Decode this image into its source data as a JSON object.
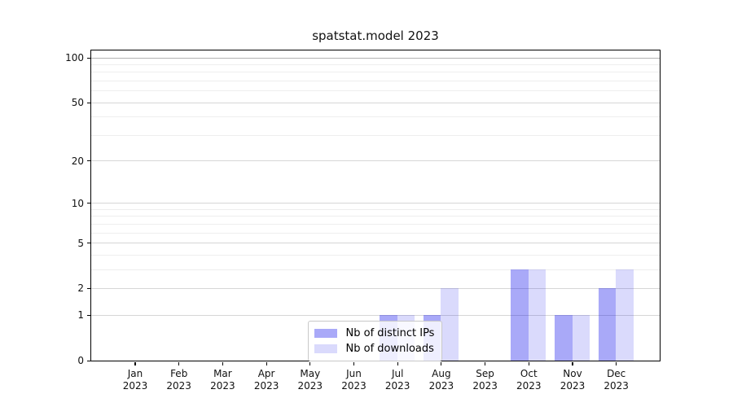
{
  "chart_data": {
    "type": "bar",
    "title": "spatstat.model 2023",
    "categories": [
      "Jan",
      "Feb",
      "Mar",
      "Apr",
      "May",
      "Jun",
      "Jul",
      "Aug",
      "Sep",
      "Oct",
      "Nov",
      "Dec"
    ],
    "category_year": "2023",
    "series": [
      {
        "name": "Nb of distinct IPs",
        "color": "rgba(10,10,235,0.35)",
        "values": [
          0,
          0,
          0,
          0,
          0,
          0,
          1,
          1,
          0,
          3,
          1,
          2
        ]
      },
      {
        "name": "Nb of downloads",
        "color": "rgba(10,10,235,0.15)",
        "values": [
          0,
          0,
          0,
          0,
          0,
          0,
          1,
          2,
          0,
          3,
          1,
          3
        ]
      }
    ],
    "yscale": "log1p",
    "ylim": [
      0,
      112
    ],
    "y_major_ticks": [
      0,
      1,
      2,
      5,
      10,
      20,
      50,
      100
    ],
    "y_minor_gridlines": [
      3,
      4,
      6,
      7,
      8,
      9,
      30,
      40,
      60,
      70,
      80,
      90
    ],
    "xlabel": "",
    "ylabel": "",
    "grid": true,
    "legend_position": "lower center"
  },
  "colors": {
    "bar_distinct_ips": "rgba(10,10,235,0.35)",
    "bar_downloads": "rgba(10,10,235,0.15)",
    "grid_major": "#d6d6d6",
    "grid_minor": "#eeeeee",
    "axis_frame": "#000000"
  }
}
